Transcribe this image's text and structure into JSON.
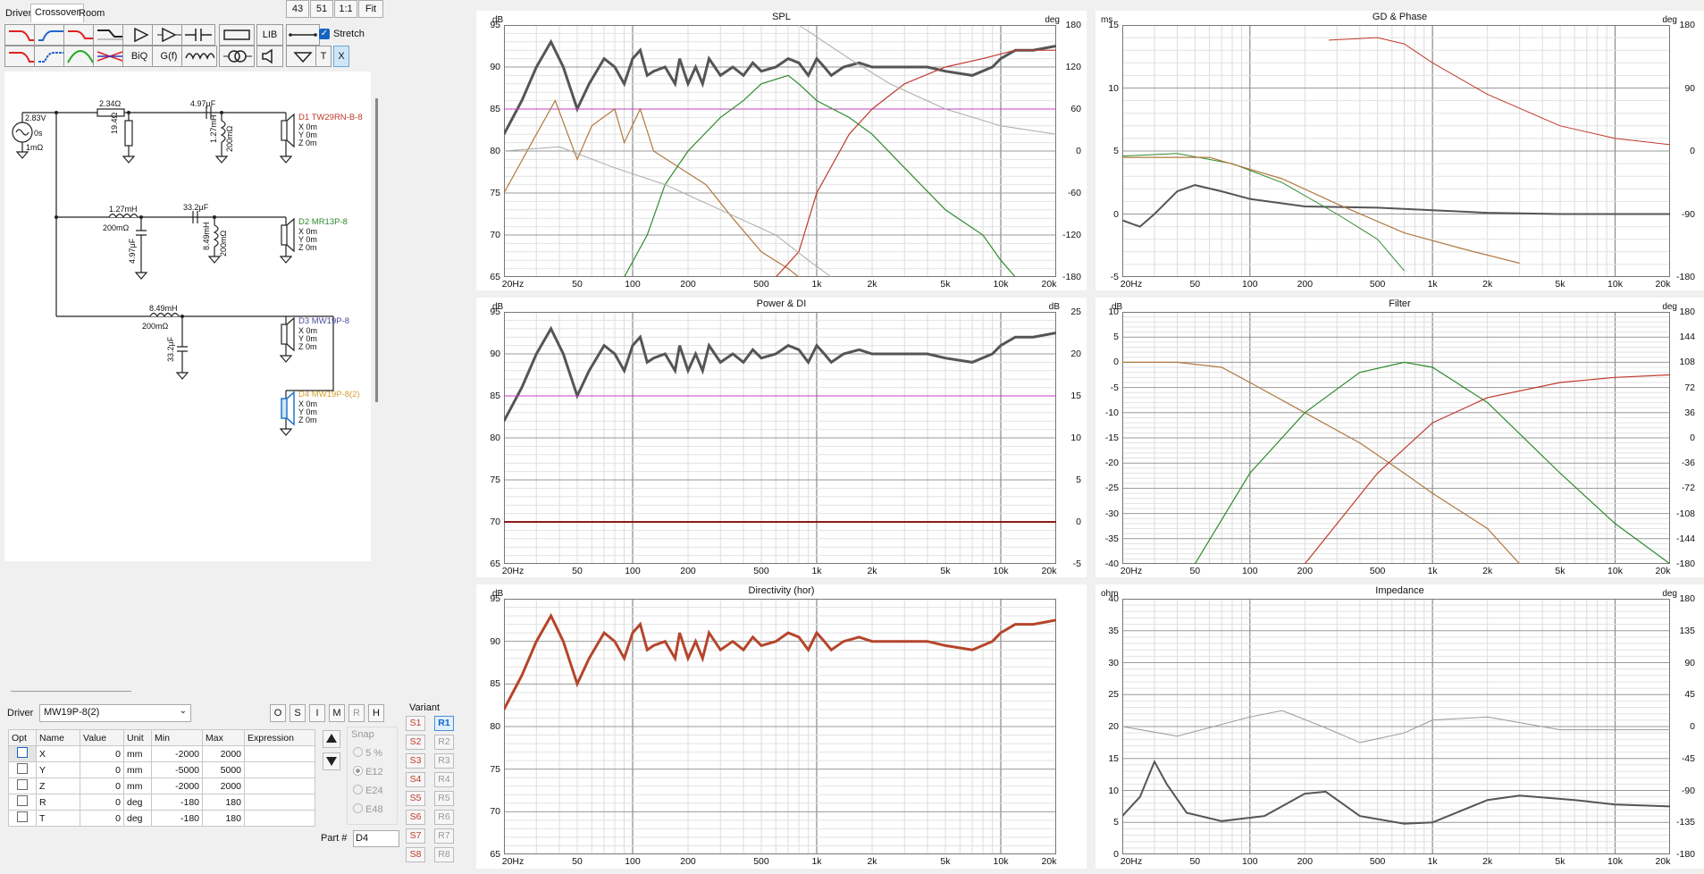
{
  "tabs": [
    "Drivers",
    "Crossover",
    "Room"
  ],
  "top_buttons": [
    "43",
    "51",
    "1:1",
    "Fit"
  ],
  "toolbar": {
    "row1": [
      "lowpass-icon",
      "highpass-icon",
      "bandpass-icon",
      "shelf-icon",
      "amp-icon",
      "buffer-icon",
      "capacitor-icon",
      "resistor-icon",
      "LIB",
      "wire-icon"
    ],
    "row2": [
      "lowpass2-icon",
      "highpass2-icon",
      "bandpass2-icon",
      "notch-icon",
      "BiQ",
      "G(f)",
      "inductor-icon",
      "transformer-icon",
      "speaker-icon",
      "ground-icon"
    ],
    "stretch_label": "Stretch",
    "T_label": "T",
    "X_label": "X"
  },
  "schematic": {
    "source_voltage": "2.83V",
    "source_delay": "0s",
    "source_res": "1mΩ",
    "r1": "2.34Ω",
    "r2": "19.4Ω",
    "c1": "4.97μF",
    "l1": "1.27mH",
    "l1r": "200mΩ",
    "l2": "1.27mH",
    "l2r": "200mΩ",
    "c2": "33.2μF",
    "c3": "4.97μF",
    "l3": "8.49mH",
    "l3r": "200mΩ",
    "l4": "8.49mH",
    "l4r": "200mΩ",
    "c4": "33.2μF",
    "drivers": [
      {
        "name": "D1 TW29RN-B-8",
        "x": "X 0m",
        "y": "Y 0m",
        "z": "Z 0m",
        "color": "#c0392b"
      },
      {
        "name": "D2 MR13P-8",
        "x": "X 0m",
        "y": "Y 0m",
        "z": "Z 0m",
        "color": "#2e8b2e"
      },
      {
        "name": "D3 MW19P-8",
        "x": "X 0m",
        "y": "Y 0m",
        "z": "Z 0m",
        "color": "#4a4aa0"
      },
      {
        "name": "D4 MW19P-8(2)",
        "x": "X 0m",
        "y": "Y 0m",
        "z": "Z 0m",
        "color": "#d4a030"
      }
    ]
  },
  "driver_panel": {
    "driver_label": "Driver",
    "driver_value": "MW19P-8(2)",
    "mode_buttons": [
      "O",
      "S",
      "I",
      "M",
      "R",
      "H"
    ],
    "columns": [
      "Opt",
      "Name",
      "Value",
      "Unit",
      "Min",
      "Max",
      "Expression"
    ],
    "rows": [
      {
        "name": "X",
        "value": "0",
        "unit": "mm",
        "min": "-2000",
        "max": "2000"
      },
      {
        "name": "Y",
        "value": "0",
        "unit": "mm",
        "min": "-5000",
        "max": "5000"
      },
      {
        "name": "Z",
        "value": "0",
        "unit": "mm",
        "min": "-2000",
        "max": "2000"
      },
      {
        "name": "R",
        "value": "0",
        "unit": "deg",
        "min": "-180",
        "max": "180"
      },
      {
        "name": "T",
        "value": "0",
        "unit": "deg",
        "min": "-180",
        "max": "180"
      }
    ],
    "snap_label": "Snap",
    "snap_options": [
      "5 %",
      "E12",
      "E24",
      "E48"
    ],
    "part_label": "Part #",
    "part_value": "D4",
    "variant_label": "Variant",
    "variants_s": [
      "S1",
      "S2",
      "S3",
      "S4",
      "S5",
      "S6",
      "S7",
      "S8"
    ],
    "variants_r": [
      "R1",
      "R2",
      "R3",
      "R4",
      "R5",
      "R6",
      "R7",
      "R8"
    ]
  },
  "graphs": {
    "x_ticks": [
      "20Hz",
      "50",
      "100",
      "200",
      "500",
      "1k",
      "2k",
      "5k",
      "10k",
      "20k"
    ],
    "spl": {
      "title": "SPL",
      "unit_left": "dB",
      "unit_right": "deg",
      "left_ticks": [
        "95",
        "90",
        "85",
        "80",
        "75",
        "70",
        "65"
      ],
      "right_ticks": [
        "180",
        "120",
        "60",
        "0",
        "-60",
        "-120",
        "-180"
      ]
    },
    "gd": {
      "title": "GD & Phase",
      "unit_left": "ms",
      "unit_right": "deg",
      "left_ticks": [
        "15",
        "10",
        "5",
        "0",
        "-5"
      ],
      "right_ticks": [
        "180",
        "90",
        "0",
        "-90",
        "-180"
      ]
    },
    "power": {
      "title": "Power & DI",
      "unit_left": "dB",
      "unit_right": "dB",
      "left_ticks": [
        "95",
        "90",
        "85",
        "80",
        "75",
        "70",
        "65"
      ],
      "right_ticks": [
        "25",
        "20",
        "15",
        "10",
        "5",
        "0",
        "-5"
      ]
    },
    "filter": {
      "title": "Filter",
      "unit_left": "dB",
      "unit_right": "deg",
      "left_ticks": [
        "10",
        "5",
        "0",
        "-5",
        "-10",
        "-15",
        "-20",
        "-25",
        "-30",
        "-35",
        "-40"
      ],
      "right_ticks": [
        "180",
        "144",
        "108",
        "72",
        "36",
        "0",
        "-36",
        "-72",
        "-108",
        "-144",
        "-180"
      ]
    },
    "directivity": {
      "title": "Directivity (hor)",
      "unit_left": "dB",
      "unit_right": "",
      "left_ticks": [
        "95",
        "90",
        "85",
        "80",
        "75",
        "70",
        "65"
      ],
      "right_ticks": []
    },
    "impedance": {
      "title": "Impedance",
      "unit_left": "ohm",
      "unit_right": "deg",
      "left_ticks": [
        "40",
        "35",
        "30",
        "25",
        "20",
        "15",
        "10",
        "5",
        "0"
      ],
      "right_ticks": [
        "180",
        "135",
        "90",
        "45",
        "0",
        "-45",
        "-90",
        "-135",
        "-180"
      ]
    }
  },
  "colors": {
    "spl_total": "#555555",
    "tweeter": "#c0392b",
    "mid": "#2e8b2e",
    "woofer": "#b07840",
    "magenta": "#c040c0",
    "directivity": "#b5452b"
  }
}
